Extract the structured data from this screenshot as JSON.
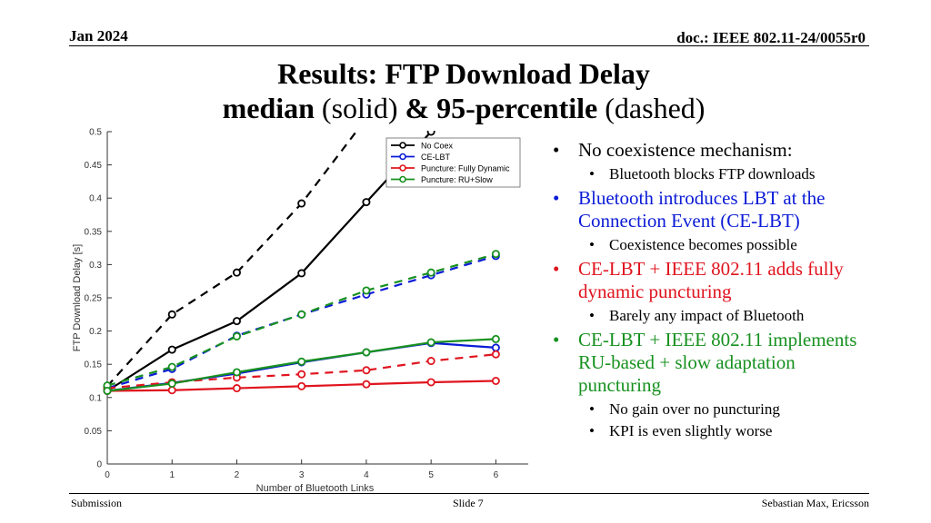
{
  "header": {
    "date": "Jan 2024",
    "doc": "doc.: IEEE 802.11-24/0055r0"
  },
  "title": {
    "line1": "Results: FTP Download Delay",
    "line2_bold1": "median",
    "line2_plain1": " (solid) ",
    "line2_bold2": "& 95-percentile",
    "line2_plain2": " (dashed)"
  },
  "bullets": [
    {
      "text": "No coexistence mechanism:",
      "color": "#000000",
      "sub": [
        "Bluetooth blocks FTP downloads"
      ]
    },
    {
      "text": "Bluetooth introduces LBT at the Connection Event (CE-LBT)",
      "color": "#0b1bd6",
      "sub": [
        "Coexistence becomes possible"
      ]
    },
    {
      "text": "CE-LBT + IEEE 802.11 adds fully dynamic puncturing",
      "color": "#e0141e",
      "sub": [
        "Barely any impact of Bluetooth"
      ]
    },
    {
      "text": "CE-LBT + IEEE 802.11 implements RU-based + slow adaptation puncturing",
      "color": "#17911f",
      "sub": [
        "No gain over no puncturing",
        "KPI is even slightly worse"
      ]
    }
  ],
  "footer": {
    "left": "Submission",
    "center": "Slide 7",
    "right": "Sebastian Max, Ericsson"
  },
  "chart_data": {
    "type": "line",
    "xlabel": "Number of Bluetooth Links",
    "ylabel": "FTP Download Delay [s]",
    "xlim": [
      0,
      6.5
    ],
    "ylim": [
      0,
      0.5
    ],
    "xticks": [
      0,
      1,
      2,
      3,
      4,
      5,
      6
    ],
    "yticks": [
      0,
      0.05,
      0.1,
      0.15,
      0.2,
      0.25,
      0.3,
      0.35,
      0.4,
      0.45,
      0.5
    ],
    "ytick_labels": [
      "0",
      "0.05",
      "0.1",
      "0.15",
      "0.2",
      "0.25",
      "0.3",
      "0.35",
      "0.4",
      "0.45",
      "0.5"
    ],
    "grid": false,
    "legend_position": "top-right",
    "x": [
      0,
      1,
      2,
      3,
      4,
      5,
      6
    ],
    "series": [
      {
        "name": "No Coex",
        "color": "#000000",
        "median": [
          0.11,
          0.172,
          0.215,
          0.287,
          0.394,
          0.5,
          null
        ],
        "p95": [
          0.117,
          0.225,
          0.288,
          0.392,
          0.52,
          null,
          null
        ]
      },
      {
        "name": "CE-LBT",
        "color": "#0b1bd6",
        "median": [
          0.11,
          0.122,
          0.136,
          0.153,
          0.168,
          0.182,
          0.175
        ],
        "p95": [
          0.114,
          0.143,
          0.193,
          0.225,
          0.255,
          0.284,
          0.313
        ]
      },
      {
        "name": "Puncture: Fully Dynamic",
        "color": "#e0141e",
        "median": [
          0.11,
          0.111,
          0.114,
          0.117,
          0.12,
          0.123,
          0.125
        ],
        "p95": [
          0.114,
          0.123,
          0.13,
          0.135,
          0.141,
          0.155,
          0.165
        ]
      },
      {
        "name": "Puncture: RU+Slow",
        "color": "#17911f",
        "median": [
          0.11,
          0.121,
          0.138,
          0.154,
          0.168,
          0.183,
          0.188
        ],
        "p95": [
          0.118,
          0.146,
          0.192,
          0.225,
          0.261,
          0.288,
          0.316
        ]
      }
    ]
  }
}
